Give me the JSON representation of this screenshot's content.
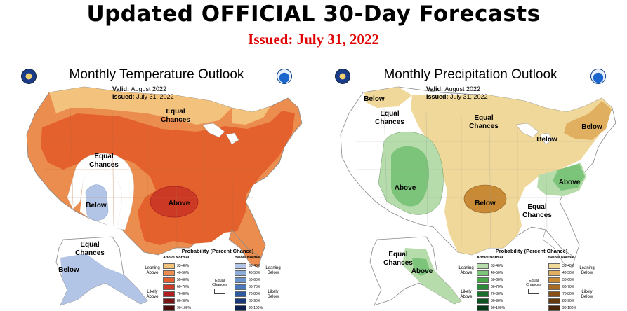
{
  "header": {
    "headline": "Updated OFFICIAL 30-Day Forecasts",
    "issued": "Issued: July 31, 2022"
  },
  "temperature": {
    "title": "Monthly Temperature Outlook",
    "valid_label": "Valid:",
    "valid_value": "August 2022",
    "issued_label": "Issued:",
    "issued_value": "July 31, 2022",
    "labels": {
      "equal_chances_north": "Equal\nChances",
      "equal_chances_west": "Equal\nChances",
      "below_sw": "Below",
      "above_south": "Above",
      "equal_chances_ak": "Equal\nChances",
      "below_ak": "Below"
    },
    "legend": {
      "title": "Probability (Percent Chance)",
      "above_header": "Above Normal",
      "below_header": "Below Normal",
      "above_bins": [
        "33-40%",
        "40-50%",
        "50-60%",
        "60-70%",
        "70-80%",
        "80-90%",
        "90-100%"
      ],
      "below_bins": [
        "33-40%",
        "40-50%",
        "50-60%",
        "60-70%",
        "70-80%",
        "80-90%",
        "90-100%"
      ],
      "above_colors": [
        "#f3c27c",
        "#eb8d4f",
        "#e4602c",
        "#cc3a25",
        "#b01f1f",
        "#7a1516",
        "#4d0c0c"
      ],
      "below_colors": [
        "#b3c5e6",
        "#8cadd9",
        "#6e94cc",
        "#4a79bb",
        "#2f5aa0",
        "#1a3978",
        "#0c2050"
      ],
      "leaning_above": "Leaning\nAbove",
      "likely_above": "Likely\nAbove",
      "leaning_below": "Leaning\nBelow",
      "likely_below": "Likely\nBelow",
      "equal_chances": "Equal\nChances"
    }
  },
  "precipitation": {
    "title": "Monthly Precipitation Outlook",
    "valid_label": "Valid:",
    "valid_value": "August 2022",
    "issued_label": "Issued:",
    "issued_value": "July 31, 2022",
    "labels": {
      "below_nw": "Below",
      "equal_chances_west": "Equal\nChances",
      "equal_chances_central": "Equal\nChances",
      "below_great_lakes": "Below",
      "below_northeast": "Below",
      "above_southwest": "Above",
      "below_south": "Below",
      "above_southeast": "Above",
      "equal_chances_gulf": "Equal\nChances",
      "equal_chances_ak": "Equal\nChances",
      "above_ak": "Above"
    },
    "legend": {
      "title": "Probability (Percent Chance)",
      "above_header": "Above Normal",
      "below_header": "Below Normal",
      "above_bins": [
        "33-40%",
        "40-50%",
        "50-60%",
        "60-70%",
        "70-80%",
        "80-90%",
        "90-100%"
      ],
      "below_bins": [
        "33-40%",
        "40-50%",
        "50-60%",
        "60-70%",
        "70-80%",
        "80-90%",
        "90-100%"
      ],
      "above_colors": [
        "#b5dcaa",
        "#7cc47a",
        "#4aa84a",
        "#2a8a3a",
        "#1a6e2e",
        "#0e5423",
        "#063a16"
      ],
      "below_colors": [
        "#f0d89a",
        "#e0b060",
        "#c98a36",
        "#a86a22",
        "#874f16",
        "#66380e",
        "#472506"
      ],
      "leaning_above": "Leaning\nAbove",
      "likely_above": "Likely\nAbove",
      "leaning_below": "Leaning\nBelow",
      "likely_below": "Likely\nBelow",
      "equal_chances": "Equal\nChances"
    }
  }
}
